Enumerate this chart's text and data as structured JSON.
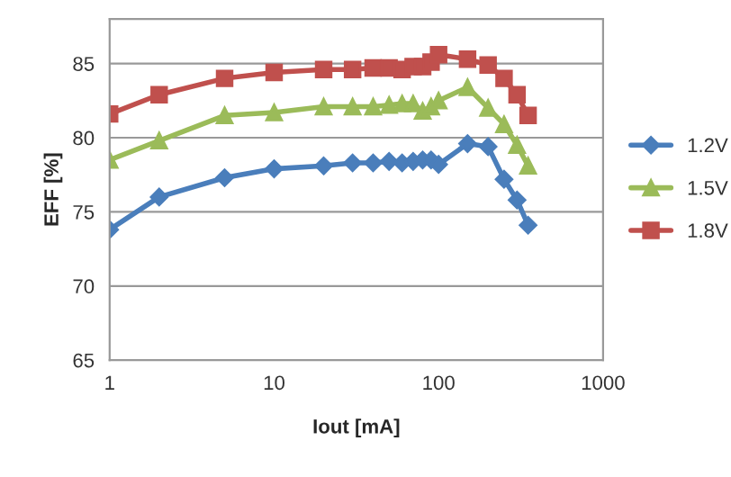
{
  "chart_data": {
    "type": "line",
    "xlabel": "Iout [mA]",
    "ylabel": "EFF [%]",
    "x": [
      1,
      2,
      5,
      10,
      20,
      30,
      40,
      50,
      60,
      70,
      80,
      90,
      100,
      150,
      200,
      250,
      300,
      350
    ],
    "series": [
      {
        "name": "1.2V",
        "color": "#4a7ebb",
        "marker": "diamond",
        "values": [
          73.8,
          76.0,
          77.3,
          77.9,
          78.1,
          78.3,
          78.3,
          78.4,
          78.3,
          78.4,
          78.5,
          78.5,
          78.2,
          79.6,
          79.4,
          77.2,
          75.8,
          74.1
        ]
      },
      {
        "name": "1.5V",
        "color": "#9bbb59",
        "marker": "triangle",
        "values": [
          78.5,
          79.8,
          81.5,
          81.7,
          82.1,
          82.1,
          82.1,
          82.2,
          82.3,
          82.3,
          81.8,
          82.1,
          82.5,
          83.4,
          82.0,
          80.9,
          79.5,
          78.1
        ]
      },
      {
        "name": "1.8V",
        "color": "#c0504d",
        "marker": "square",
        "values": [
          81.6,
          82.9,
          84.0,
          84.4,
          84.6,
          84.6,
          84.7,
          84.7,
          84.6,
          84.8,
          84.8,
          85.1,
          85.6,
          85.3,
          84.9,
          84.0,
          82.9,
          81.5
        ]
      }
    ],
    "log": "x",
    "xlim": [
      1,
      1000
    ],
    "xticks": [
      1,
      10,
      100,
      1000
    ],
    "ylim": [
      65,
      88
    ],
    "yticks": [
      65,
      70,
      75,
      80,
      85
    ],
    "grid": "y",
    "legend": "right",
    "line_style": "solid"
  }
}
